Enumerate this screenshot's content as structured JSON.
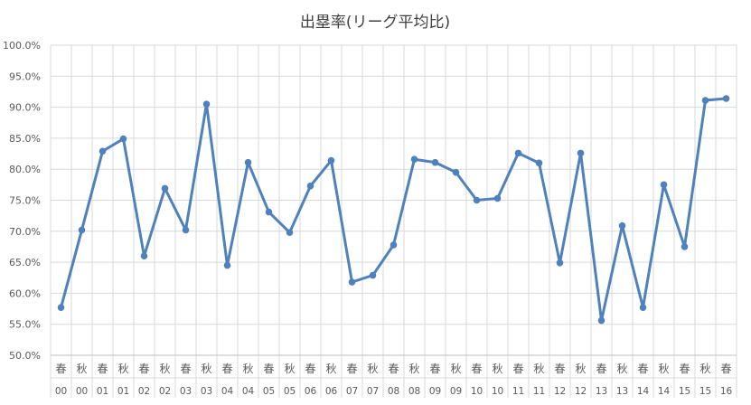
{
  "chart_data": {
    "type": "line",
    "title": "出塁率(リーグ平均比)",
    "xlabel": "",
    "ylabel": "",
    "ylim": [
      0.5,
      1.0
    ],
    "yticks": [
      "50.0%",
      "55.0%",
      "60.0%",
      "65.0%",
      "70.0%",
      "75.0%",
      "80.0%",
      "85.0%",
      "90.0%",
      "95.0%",
      "100.0%"
    ],
    "grid": true,
    "legend": "none",
    "series_color": "#4f81bd",
    "categories": [
      [
        "春",
        "00"
      ],
      [
        "秋",
        "00"
      ],
      [
        "春",
        "01"
      ],
      [
        "秋",
        "01"
      ],
      [
        "春",
        "02"
      ],
      [
        "秋",
        "02"
      ],
      [
        "春",
        "03"
      ],
      [
        "秋",
        "03"
      ],
      [
        "春",
        "04"
      ],
      [
        "秋",
        "04"
      ],
      [
        "春",
        "05"
      ],
      [
        "秋",
        "05"
      ],
      [
        "春",
        "06"
      ],
      [
        "秋",
        "06"
      ],
      [
        "春",
        "07"
      ],
      [
        "秋",
        "07"
      ],
      [
        "春",
        "08"
      ],
      [
        "秋",
        "08"
      ],
      [
        "春",
        "09"
      ],
      [
        "秋",
        "09"
      ],
      [
        "春",
        "10"
      ],
      [
        "秋",
        "10"
      ],
      [
        "春",
        "11"
      ],
      [
        "秋",
        "11"
      ],
      [
        "春",
        "12"
      ],
      [
        "秋",
        "12"
      ],
      [
        "春",
        "13"
      ],
      [
        "秋",
        "13"
      ],
      [
        "春",
        "14"
      ],
      [
        "秋",
        "14"
      ],
      [
        "春",
        "15"
      ],
      [
        "秋",
        "15"
      ],
      [
        "春",
        "16"
      ]
    ],
    "series": [
      {
        "values": [
          0.577,
          0.702,
          0.829,
          0.849,
          0.66,
          0.769,
          0.702,
          0.905,
          0.645,
          0.811,
          0.731,
          0.698,
          0.773,
          0.814,
          0.618,
          0.629,
          0.678,
          0.816,
          0.811,
          0.795,
          0.75,
          0.753,
          0.826,
          0.81,
          0.649,
          0.826,
          0.556,
          0.709,
          0.577,
          0.775,
          0.675,
          0.911,
          0.914
        ]
      }
    ]
  }
}
